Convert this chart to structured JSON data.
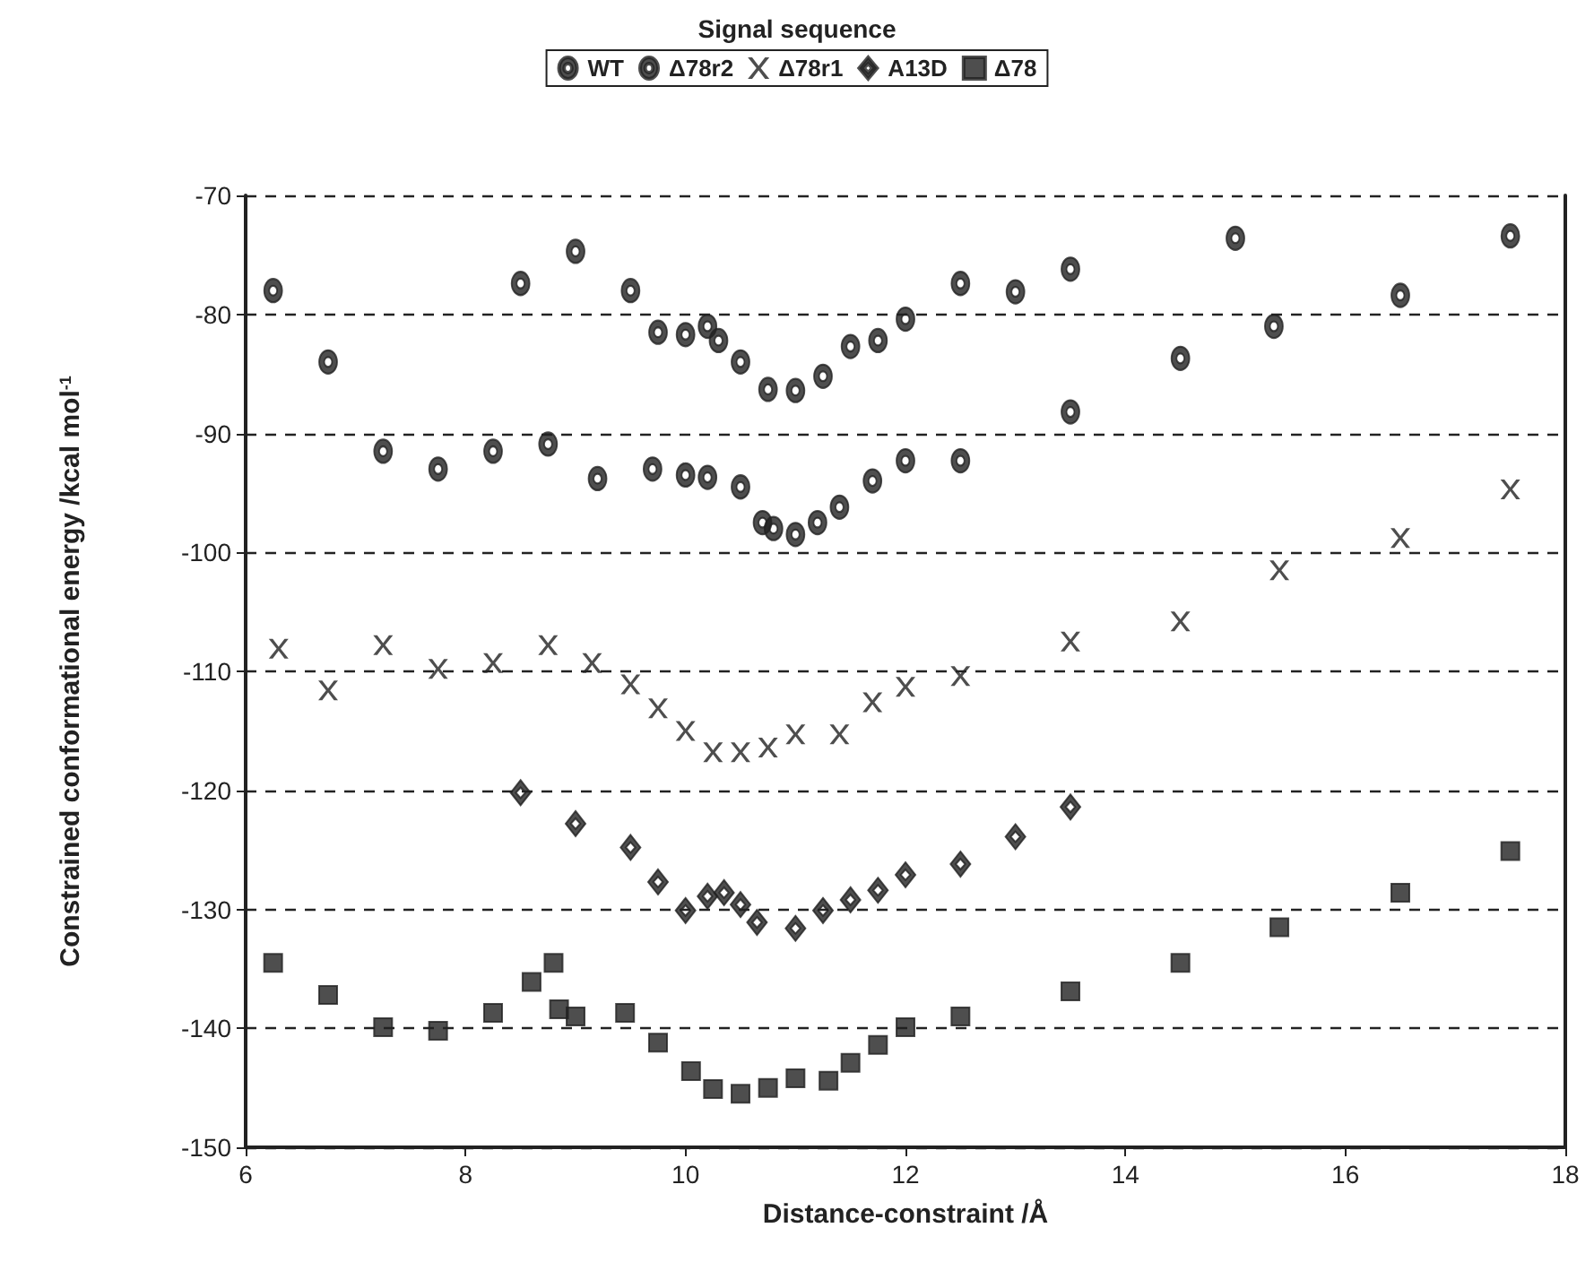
{
  "chart_data": {
    "type": "scatter",
    "title": "Signal sequence",
    "xlabel": "Distance-constraint /Å",
    "ylabel": "Constrained conformational energy /kcal mol$^{-1}$",
    "xlim": [
      6,
      18
    ],
    "xticks": [
      6,
      8,
      10,
      12,
      14,
      16,
      18
    ],
    "ylim": [
      -150,
      -70
    ],
    "yticks": [
      -150,
      -140,
      -130,
      -120,
      -110,
      -100,
      -90,
      -80,
      -70
    ],
    "grid": "y",
    "legend": "top",
    "series": [
      {
        "name": "WT",
        "color": "#222222",
        "marker": "circle",
        "x": [
          8.5,
          9,
          9.5,
          9.75,
          10,
          10.2,
          10.3,
          10.5,
          10.75,
          11,
          11.25,
          11.5,
          11.75,
          12,
          12.5,
          13,
          13.5,
          15
        ],
        "values": [
          -77.4,
          -74.7,
          -78,
          -81.5,
          -81.7,
          -81,
          -82.2,
          -84,
          -86.3,
          -86.4,
          -85.2,
          -82.7,
          -82.2,
          -80.4,
          -77.4,
          -78.1,
          -76.2,
          -73.6
        ]
      },
      {
        "name": "Δ78r2",
        "color": "#222222",
        "marker": "circle",
        "x": [
          6.25,
          6.75,
          7.25,
          7.75,
          8.25,
          8.75,
          9.2,
          9.7,
          10,
          10.2,
          10.5,
          10.7,
          10.8,
          11,
          11.2,
          11.4,
          11.7,
          12,
          12.5,
          13.5,
          14.5,
          15.35,
          16.5,
          17.5
        ],
        "values": [
          -78,
          -84,
          -91.5,
          -93,
          -91.5,
          -90.9,
          -93.8,
          -93,
          -93.5,
          -93.7,
          -94.5,
          -97.5,
          -98,
          -98.5,
          -97.5,
          -96.2,
          -94,
          -92.3,
          -92.3,
          -88.2,
          -83.7,
          -81,
          -78.4,
          -73.4
        ]
      },
      {
        "name": "Δ78r1",
        "color": "#222222",
        "marker": "cross",
        "x": [
          6.3,
          6.75,
          7.25,
          7.75,
          8.25,
          8.75,
          9.15,
          9.5,
          9.75,
          10,
          10.25,
          10.5,
          10.75,
          11,
          11.4,
          11.7,
          12,
          12.5,
          13.5,
          14.5,
          15.4,
          16.5,
          17.5
        ],
        "values": [
          -108.1,
          -111.6,
          -107.8,
          -109.8,
          -109.3,
          -107.8,
          -109.3,
          -111.1,
          -113.1,
          -115,
          -116.8,
          -116.8,
          -116.4,
          -115.3,
          -115.3,
          -112.6,
          -111.3,
          -110.4,
          -107.5,
          -105.8,
          -101.5,
          -98.8,
          -94.7
        ]
      },
      {
        "name": "A13D",
        "color": "#222222",
        "marker": "diamond",
        "x": [
          8.5,
          9,
          9.5,
          9.75,
          10,
          10.2,
          10.35,
          10.5,
          10.65,
          11,
          11.25,
          11.5,
          11.75,
          12,
          12.5,
          13,
          13.5
        ],
        "values": [
          -120.2,
          -122.8,
          -124.8,
          -127.7,
          -130.1,
          -128.9,
          -128.6,
          -129.6,
          -131.1,
          -131.6,
          -130.1,
          -129.2,
          -128.4,
          -127.1,
          -126.2,
          -123.9,
          -121.4
        ]
      },
      {
        "name": "Δ78",
        "color": "#222222",
        "marker": "square",
        "x": [
          6.25,
          6.75,
          7.25,
          7.75,
          8.25,
          8.6,
          8.8,
          8.85,
          9,
          9.45,
          9.75,
          10.05,
          10.25,
          10.5,
          10.75,
          11,
          11.3,
          11.5,
          11.75,
          12,
          12.5,
          13.5,
          14.5,
          15.4,
          16.5,
          17.5
        ],
        "values": [
          -134.5,
          -137.2,
          -139.9,
          -140.2,
          -138.7,
          -136.1,
          -134.5,
          -138.4,
          -139,
          -138.7,
          -141.2,
          -143.6,
          -145.1,
          -145.5,
          -145,
          -144.2,
          -144.4,
          -142.9,
          -141.4,
          -139.9,
          -139,
          -136.9,
          -134.5,
          -131.5,
          -128.6,
          -125.1
        ]
      }
    ]
  }
}
